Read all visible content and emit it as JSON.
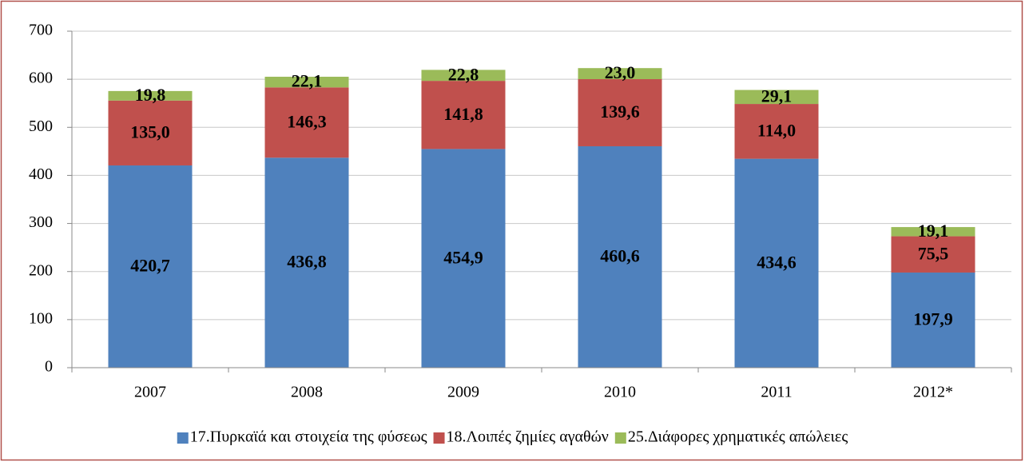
{
  "chart_data": {
    "type": "stacked_bar",
    "categories": [
      "2007",
      "2008",
      "2009",
      "2010",
      "2011",
      "2012*"
    ],
    "series": [
      {
        "name": "17.Πυρκαϊά και στοιχεία της φύσεως",
        "color": "#4f81bd",
        "values": [
          420.7,
          436.8,
          454.9,
          460.6,
          434.6,
          197.9
        ],
        "value_labels": [
          "420,7",
          "436,8",
          "454,9",
          "460,6",
          "434,6",
          "197,9"
        ]
      },
      {
        "name": "18.Λοιπές ζημίες αγαθών",
        "color": "#c0504d",
        "values": [
          135.0,
          146.3,
          141.8,
          139.6,
          114.0,
          75.5
        ],
        "value_labels": [
          "135,0",
          "146,3",
          "141,8",
          "139,6",
          "114,0",
          "75,5"
        ]
      },
      {
        "name": "25.Διάφορες χρηματικές απώλειες",
        "color": "#9bbb59",
        "values": [
          19.8,
          22.1,
          22.8,
          23.0,
          29.1,
          19.1
        ],
        "value_labels": [
          "19,8",
          "22,1",
          "22,8",
          "23,0",
          "29,1",
          "19,1"
        ]
      }
    ],
    "ylim": [
      0,
      700
    ],
    "yticks": [
      0,
      100,
      200,
      300,
      400,
      500,
      600,
      700
    ],
    "grid": true,
    "legend": "bottom"
  }
}
